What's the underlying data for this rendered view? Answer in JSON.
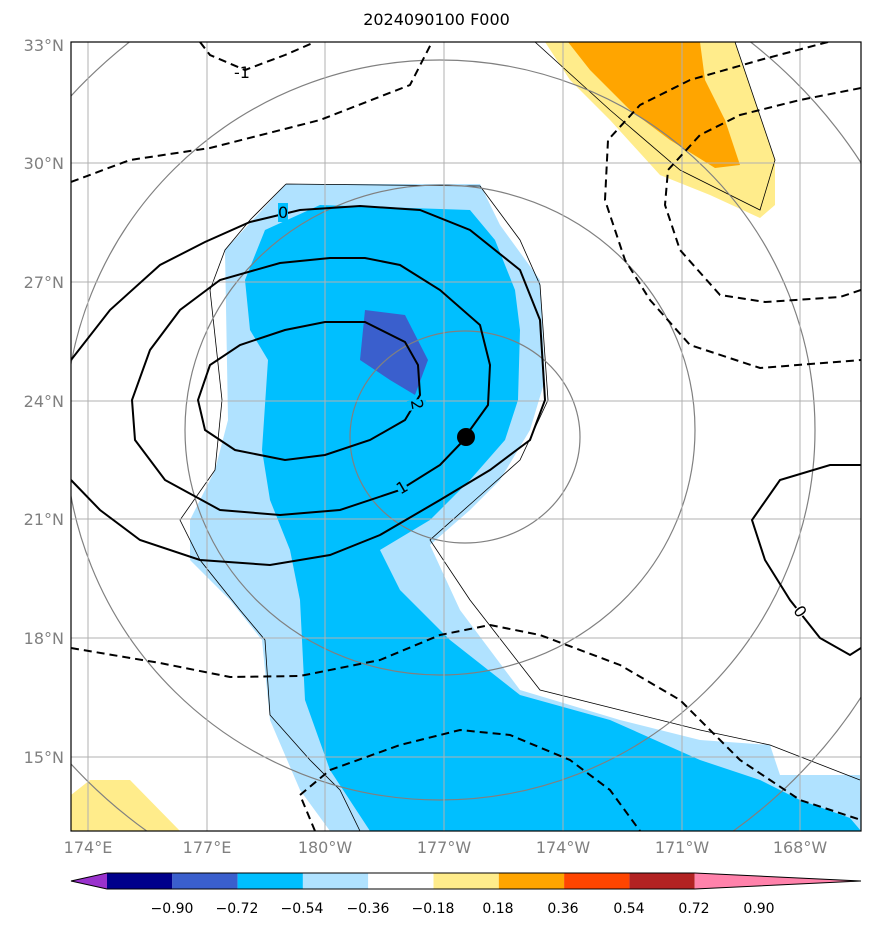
{
  "title": "2024090100 F000",
  "map": {
    "lat_ticks": [
      "33°N",
      "30°N",
      "27°N",
      "24°N",
      "21°N",
      "18°N",
      "15°N"
    ],
    "lon_ticks": [
      "174°E",
      "177°E",
      "180°W",
      "177°W",
      "174°W",
      "171°W",
      "168°W"
    ],
    "contour_labels": [
      "-1",
      "0",
      "2",
      "1",
      "0"
    ],
    "marker": "storm-center-dot"
  },
  "colorbar": {
    "ticks": [
      "−0.90",
      "−0.72",
      "−0.54",
      "−0.36",
      "−0.18",
      "0.18",
      "0.36",
      "0.54",
      "0.72",
      "0.90"
    ],
    "colors": [
      "#9a32cd",
      "#00008b",
      "#3a5fcd",
      "#00bfff",
      "#b0e2ff",
      "#ffffff",
      "#ffec8b",
      "#ffa500",
      "#ff4500",
      "#b22222",
      "#ff82ab"
    ]
  }
}
